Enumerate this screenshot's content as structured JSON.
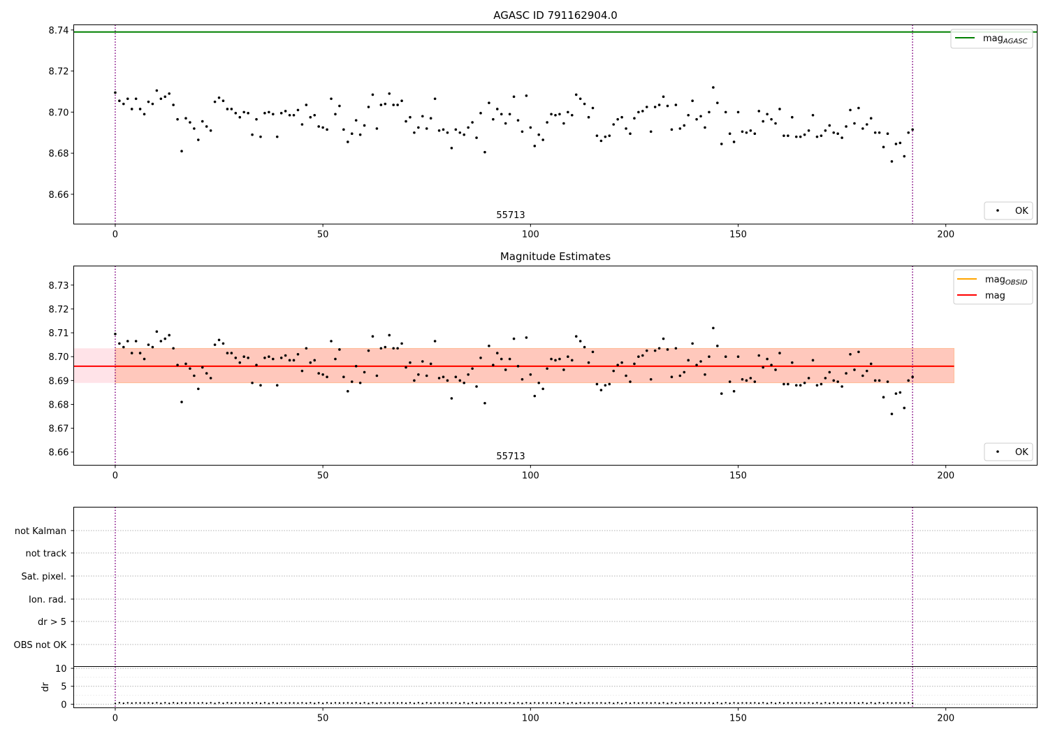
{
  "chart_data": [
    {
      "type": "scatter",
      "title": "AGASC ID 791162904.0",
      "annotation": "55713",
      "xlim": [
        -10,
        222
      ],
      "ylim": [
        8.6455,
        8.7425
      ],
      "xticks": [
        0,
        50,
        100,
        150,
        200
      ],
      "yticks": [
        8.66,
        8.68,
        8.7,
        8.72,
        8.74
      ],
      "ytick_labels": [
        "8.66",
        "8.68",
        "8.70",
        "8.72",
        "8.74"
      ],
      "vlines": [
        0,
        192
      ],
      "grid": false,
      "hlines": [
        {
          "name": "mag_AGASC",
          "label_main": "mag",
          "label_sub": "AGASC",
          "value": 8.739,
          "color": "#008000"
        }
      ],
      "legends": [
        {
          "placement": "top-right",
          "entries": [
            {
              "main": "mag",
              "sub": "AGASC",
              "color": "#008000",
              "kind": "line"
            }
          ]
        },
        {
          "placement": "bottom-right",
          "entries": [
            {
              "main": "OK",
              "sub": "",
              "color": "#000000",
              "kind": "point"
            }
          ]
        }
      ],
      "series": [
        {
          "name": "OK",
          "color": "#000000",
          "x": "0..192",
          "y": "shared: points.y"
        }
      ]
    },
    {
      "type": "scatter",
      "title": "Magnitude Estimates",
      "annotation": "55713",
      "xlim": [
        -10,
        222
      ],
      "ylim": [
        8.6545,
        8.738
      ],
      "xticks": [
        0,
        50,
        100,
        150,
        200
      ],
      "yticks": [
        8.66,
        8.67,
        8.68,
        8.69,
        8.7,
        8.71,
        8.72,
        8.73
      ],
      "ytick_labels": [
        "8.66",
        "8.67",
        "8.68",
        "8.69",
        "8.70",
        "8.71",
        "8.72",
        "8.73"
      ],
      "vlines": [
        0,
        192
      ],
      "grid": false,
      "mag": {
        "value": 8.696,
        "band": [
          8.689,
          8.7035
        ],
        "x_range": [
          -10,
          202
        ],
        "line_color": "#ff0000",
        "band_color": "#ffc0cb"
      },
      "mag_obsid": {
        "value": 8.696,
        "band": [
          8.689,
          8.7035
        ],
        "x_range": [
          0,
          202
        ],
        "line_color": "#ffa500",
        "band_color": "#ffa07a"
      },
      "legends": [
        {
          "placement": "top-right",
          "entries": [
            {
              "main": "mag",
              "sub": "OBSID",
              "color": "#ffa500",
              "kind": "line"
            },
            {
              "main": "mag",
              "sub": "",
              "color": "#ff0000",
              "kind": "line"
            }
          ]
        },
        {
          "placement": "bottom-right",
          "entries": [
            {
              "main": "OK",
              "sub": "",
              "color": "#000000",
              "kind": "point"
            }
          ]
        }
      ],
      "series": [
        {
          "name": "OK",
          "color": "#000000",
          "x": "0..192",
          "y": "shared: points.y"
        }
      ]
    },
    {
      "type": "scatter",
      "title": "",
      "flag_labels": [
        "not Kalman",
        "not track",
        "Sat. pixel.",
        "Ion. rad.",
        "dr > 5",
        "OBS not OK"
      ],
      "flag_counts": [
        0,
        0,
        0,
        0,
        0,
        0
      ],
      "xlim": [
        -10,
        222
      ],
      "vlines": [
        0,
        192
      ],
      "grid": true
    },
    {
      "type": "scatter",
      "ylabel": "dr",
      "xlim": [
        -10,
        222
      ],
      "ylim": [
        -1,
        10.5
      ],
      "xticks": [
        0,
        50,
        100,
        150,
        200
      ],
      "yticks": [
        0,
        5,
        10
      ],
      "vlines": [
        0,
        192
      ],
      "hline": 5,
      "grid": true,
      "dr_values_approx": "0.2 to 0.4 for all 193 points"
    }
  ],
  "points": {
    "x_start": 0,
    "x_step": 1,
    "y": [
      8.7095,
      8.7055,
      8.704,
      8.7065,
      8.7015,
      8.7065,
      8.7015,
      8.699,
      8.705,
      8.704,
      8.7105,
      8.7065,
      8.7075,
      8.709,
      8.7035,
      8.6965,
      8.681,
      8.697,
      8.695,
      8.692,
      8.6865,
      8.6955,
      8.693,
      8.691,
      8.705,
      8.707,
      8.7055,
      8.7015,
      8.7015,
      8.6995,
      8.6975,
      8.7,
      8.6995,
      8.689,
      8.6965,
      8.688,
      8.6995,
      8.7,
      8.699,
      8.688,
      8.6995,
      8.7005,
      8.6985,
      8.6985,
      8.701,
      8.694,
      8.7035,
      8.6975,
      8.6985,
      8.693,
      8.6925,
      8.6915,
      8.7065,
      8.699,
      8.703,
      8.6915,
      8.6855,
      8.6895,
      8.696,
      8.689,
      8.6935,
      8.7025,
      8.7085,
      8.692,
      8.7035,
      8.704,
      8.709,
      8.7035,
      8.7035,
      8.7055,
      8.6955,
      8.6975,
      8.69,
      8.6925,
      8.698,
      8.692,
      8.697,
      8.7065,
      8.691,
      8.6915,
      8.69,
      8.6825,
      8.6915,
      8.69,
      8.689,
      8.6925,
      8.695,
      8.6875,
      8.6995,
      8.6805,
      8.7045,
      8.6965,
      8.7015,
      8.699,
      8.6945,
      8.699,
      8.7075,
      8.696,
      8.6905,
      8.708,
      8.6925,
      8.6835,
      8.689,
      8.6865,
      8.695,
      8.699,
      8.6985,
      8.699,
      8.6945,
      8.7,
      8.6985,
      8.7085,
      8.7065,
      8.704,
      8.6975,
      8.702,
      8.6885,
      8.686,
      8.688,
      8.6885,
      8.694,
      8.6965,
      8.6975,
      8.692,
      8.6895,
      8.697,
      8.7,
      8.7005,
      8.7025,
      8.6905,
      8.7025,
      8.7035,
      8.7075,
      8.703,
      8.6915,
      8.7035,
      8.692,
      8.6935,
      8.6985,
      8.7055,
      8.6965,
      8.698,
      8.6925,
      8.7,
      8.712,
      8.7045,
      8.6845,
      8.7,
      8.6895,
      8.6855,
      8.7,
      8.6905,
      8.69,
      8.691,
      8.6895,
      8.7005,
      8.6955,
      8.699,
      8.6965,
      8.6945,
      8.7015,
      8.6885,
      8.6885,
      8.6975,
      8.688,
      8.688,
      8.689,
      8.691,
      8.6985,
      8.688,
      8.6885,
      8.691,
      8.6935,
      8.69,
      8.6895,
      8.6875,
      8.693,
      8.701,
      8.6945,
      8.702,
      8.692,
      8.694,
      8.697,
      8.69,
      8.69,
      8.683,
      8.6895,
      8.676,
      8.6845,
      8.685,
      8.6785,
      8.69,
      8.6915
    ]
  }
}
